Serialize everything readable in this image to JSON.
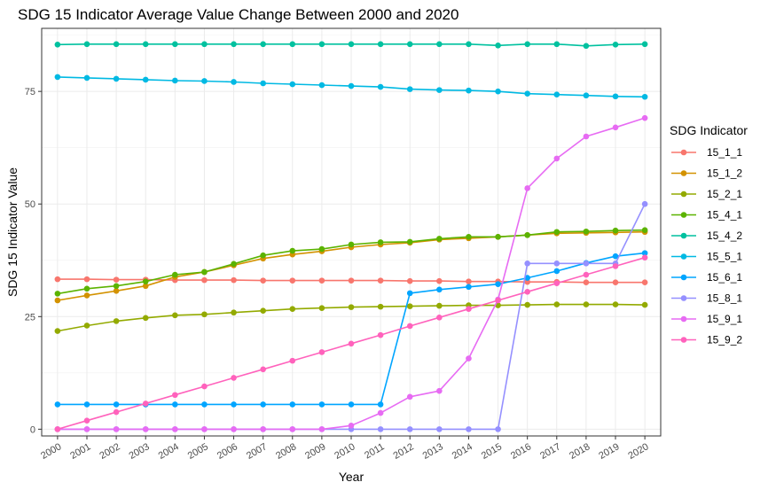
{
  "chart_data": {
    "type": "line",
    "title": "SDG 15 Indicator Average Value Change Between 2000 and 2020",
    "xlabel": "Year",
    "ylabel": "SDG 15 Indicator Value",
    "categories": [
      "2000",
      "2001",
      "2002",
      "2003",
      "2004",
      "2005",
      "2006",
      "2007",
      "2008",
      "2009",
      "2010",
      "2011",
      "2012",
      "2013",
      "2014",
      "2015",
      "2016",
      "2017",
      "2018",
      "2019",
      "2020"
    ],
    "yticks": [
      0,
      25,
      50,
      75
    ],
    "ylim": [
      -1.5,
      89
    ],
    "grid": true,
    "legend": {
      "title": "SDG Indicator",
      "position": "right"
    },
    "series": [
      {
        "name": "15_1_1",
        "color": "#F8766D",
        "values": [
          33.3,
          33.3,
          33.2,
          33.2,
          33.1,
          33.1,
          33.1,
          33.0,
          33.0,
          33.0,
          33.0,
          33.0,
          32.9,
          32.9,
          32.8,
          32.8,
          32.7,
          32.7,
          32.6,
          32.6,
          32.6
        ]
      },
      {
        "name": "15_1_2",
        "color": "#D39200",
        "values": [
          28.6,
          29.7,
          30.7,
          31.8,
          33.8,
          34.9,
          36.4,
          37.9,
          38.8,
          39.5,
          40.4,
          41.0,
          41.4,
          42.1,
          42.4,
          42.7,
          43.1,
          43.5,
          43.6,
          43.7,
          43.8
        ]
      },
      {
        "name": "15_2_1",
        "color": "#93AA00",
        "values": [
          21.8,
          23.0,
          24.0,
          24.7,
          25.3,
          25.5,
          25.9,
          26.3,
          26.7,
          26.9,
          27.1,
          27.2,
          27.3,
          27.4,
          27.5,
          27.5,
          27.6,
          27.7,
          27.7,
          27.7,
          27.6
        ]
      },
      {
        "name": "15_4_1",
        "color": "#5BB300",
        "values": [
          30.1,
          31.2,
          31.8,
          32.8,
          34.3,
          34.9,
          36.7,
          38.6,
          39.6,
          40.0,
          41.0,
          41.5,
          41.6,
          42.3,
          42.7,
          42.7,
          43.1,
          43.8,
          43.9,
          44.1,
          44.2
        ]
      },
      {
        "name": "15_4_2",
        "color": "#00C19F",
        "values": [
          85.4,
          85.5,
          85.5,
          85.5,
          85.5,
          85.5,
          85.5,
          85.5,
          85.5,
          85.5,
          85.5,
          85.5,
          85.5,
          85.5,
          85.5,
          85.2,
          85.5,
          85.5,
          85.1,
          85.4,
          85.5
        ]
      },
      {
        "name": "15_5_1",
        "color": "#00B9E3",
        "values": [
          78.2,
          78.0,
          77.8,
          77.6,
          77.4,
          77.3,
          77.1,
          76.8,
          76.6,
          76.4,
          76.2,
          76.0,
          75.5,
          75.3,
          75.2,
          75.0,
          74.5,
          74.3,
          74.1,
          73.9,
          73.8
        ]
      },
      {
        "name": "15_6_1",
        "color": "#00A5FF",
        "values": [
          5.5,
          5.5,
          5.5,
          5.5,
          5.5,
          5.5,
          5.5,
          5.5,
          5.5,
          5.5,
          5.5,
          5.5,
          30.2,
          31.0,
          31.6,
          32.2,
          33.6,
          35.1,
          36.9,
          38.4,
          39.1
        ]
      },
      {
        "name": "15_8_1",
        "color": "#9590FF",
        "values": [
          0,
          0,
          0,
          0,
          0,
          0,
          0,
          0,
          0,
          0,
          0,
          0,
          0,
          0,
          0,
          0,
          36.8,
          36.8,
          36.8,
          36.8,
          50.0
        ]
      },
      {
        "name": "15_9_1",
        "color": "#E76BF3",
        "values": [
          0,
          0,
          0,
          0,
          0,
          0,
          0,
          0,
          0,
          0,
          0.8,
          3.6,
          7.2,
          8.5,
          15.7,
          28.8,
          53.5,
          60.1,
          65.0,
          67.0,
          69.1
        ]
      },
      {
        "name": "15_9_2",
        "color": "#FF62BC",
        "values": [
          0,
          1.9,
          3.8,
          5.7,
          7.6,
          9.5,
          11.4,
          13.3,
          15.2,
          17.1,
          19.0,
          20.9,
          22.9,
          24.8,
          26.7,
          28.6,
          30.5,
          32.4,
          34.3,
          36.2,
          38.1
        ]
      }
    ]
  }
}
